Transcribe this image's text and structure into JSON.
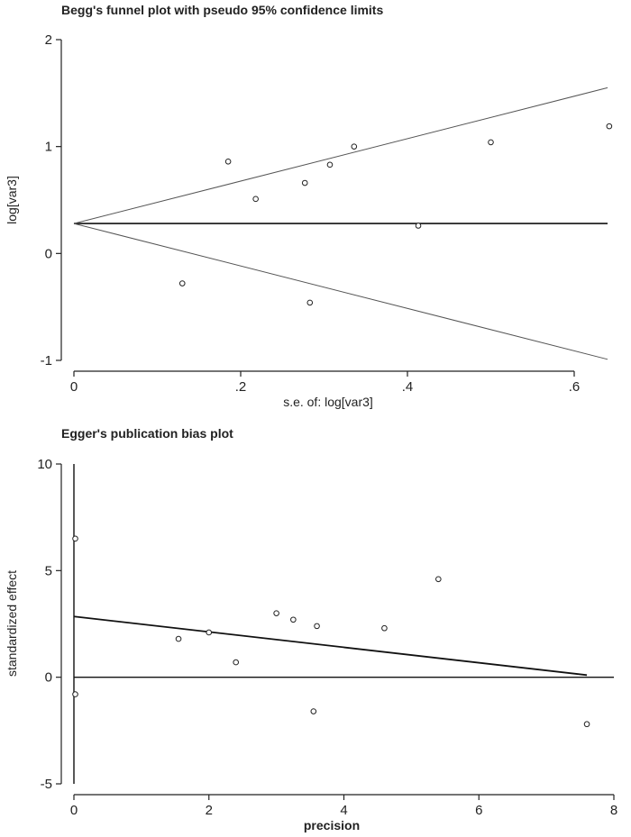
{
  "chart_data": [
    {
      "type": "scatter",
      "title": "Begg's funnel plot with pseudo 95% confidence limits",
      "xlabel": "s.e. of: log[var3]",
      "ylabel": "log[var3]",
      "xlim": [
        0,
        0.64
      ],
      "ylim": [
        -1,
        2
      ],
      "x_ticks": [
        0,
        0.2,
        0.4,
        0.6
      ],
      "x_tick_labels": [
        "0",
        ".2",
        ".4",
        ".6"
      ],
      "y_ticks": [
        -1,
        0,
        1,
        2
      ],
      "y_tick_labels": [
        "-1",
        "0",
        "1",
        "2"
      ],
      "pooled_estimate": 0.28,
      "confidence_limits": {
        "upper_end": 1.55,
        "lower_end": -0.99,
        "se_end": 0.64
      },
      "points": [
        {
          "x": 0.13,
          "y": -0.28
        },
        {
          "x": 0.185,
          "y": 0.86
        },
        {
          "x": 0.218,
          "y": 0.51
        },
        {
          "x": 0.277,
          "y": 0.66
        },
        {
          "x": 0.283,
          "y": -0.46
        },
        {
          "x": 0.307,
          "y": 0.83
        },
        {
          "x": 0.336,
          "y": 1.0
        },
        {
          "x": 0.413,
          "y": 0.26
        },
        {
          "x": 0.5,
          "y": 1.04
        },
        {
          "x": 0.642,
          "y": 1.19
        }
      ]
    },
    {
      "type": "scatter",
      "title": "Egger's publication bias plot",
      "xlabel": "precision",
      "ylabel": "standardized effect",
      "xlim": [
        0,
        8
      ],
      "ylim": [
        -5,
        10
      ],
      "x_ticks": [
        0,
        2,
        4,
        6,
        8
      ],
      "x_tick_labels": [
        "0",
        "2",
        "4",
        "6",
        "8"
      ],
      "y_ticks": [
        -5,
        0,
        5,
        10
      ],
      "y_tick_labels": [
        "-5",
        "0",
        "5",
        "10"
      ],
      "intercept_range": [
        -5,
        10
      ],
      "regression_line": {
        "x": [
          0,
          7.6
        ],
        "y": [
          2.85,
          0.1
        ]
      },
      "points": [
        {
          "x": 0.02,
          "y": 6.5
        },
        {
          "x": 0.02,
          "y": -0.8
        },
        {
          "x": 1.55,
          "y": 1.8
        },
        {
          "x": 2.0,
          "y": 2.1
        },
        {
          "x": 2.4,
          "y": 0.7
        },
        {
          "x": 3.0,
          "y": 3.0
        },
        {
          "x": 3.25,
          "y": 2.7
        },
        {
          "x": 3.55,
          "y": -1.6
        },
        {
          "x": 3.6,
          "y": 2.4
        },
        {
          "x": 4.6,
          "y": 2.3
        },
        {
          "x": 5.4,
          "y": 4.6
        },
        {
          "x": 7.6,
          "y": -2.2
        }
      ]
    }
  ]
}
